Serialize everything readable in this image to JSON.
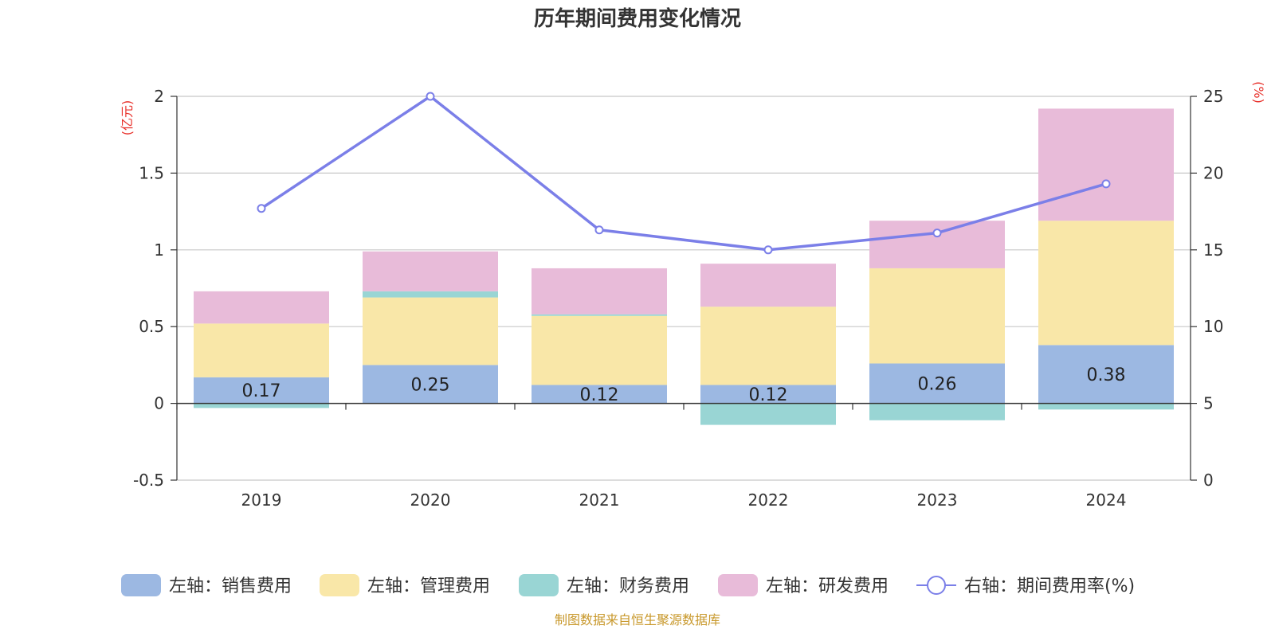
{
  "title": "历年期间费用变化情况",
  "source": "制图数据来自恒生聚源数据库",
  "colors": {
    "sales": "#9cb8e2",
    "admin": "#f9e7a8",
    "finance": "#99d5d4",
    "rd": "#e8bbd9",
    "rate_line": "#7b7fe8",
    "unit_text": "#e8312b",
    "source_text": "#c8982b"
  },
  "chart_data": {
    "type": "bar",
    "stacked": true,
    "title": "历年期间费用变化情况",
    "categories": [
      "2019",
      "2020",
      "2021",
      "2022",
      "2023",
      "2024"
    ],
    "left_axis": {
      "unit": "(亿元)",
      "ylim": [
        -0.5,
        2
      ],
      "ticks": [
        -0.5,
        0,
        0.5,
        1,
        1.5,
        2
      ],
      "tick_labels": [
        "-0.5",
        "0",
        "0.5",
        "1",
        "1.5",
        "2"
      ]
    },
    "right_axis": {
      "unit": "(%)",
      "ylim": [
        0,
        25
      ],
      "ticks": [
        0,
        5,
        10,
        15,
        20,
        25
      ],
      "tick_labels": [
        "0",
        "5",
        "10",
        "15",
        "20",
        "25"
      ]
    },
    "series": [
      {
        "key": "sales",
        "name": "左轴：销售费用",
        "type": "bar",
        "axis": "left",
        "values": [
          0.17,
          0.25,
          0.12,
          0.12,
          0.26,
          0.38
        ],
        "labels": [
          "0.17",
          "0.25",
          "0.12",
          "0.12",
          "0.26",
          "0.38"
        ]
      },
      {
        "key": "admin",
        "name": "左轴：管理费用",
        "type": "bar",
        "axis": "left",
        "values": [
          0.35,
          0.44,
          0.45,
          0.51,
          0.62,
          0.81
        ]
      },
      {
        "key": "finance",
        "name": "左轴：财务费用",
        "type": "bar",
        "axis": "left",
        "values": [
          -0.03,
          0.04,
          0.01,
          -0.14,
          -0.11,
          -0.04
        ]
      },
      {
        "key": "rd",
        "name": "左轴：研发费用",
        "type": "bar",
        "axis": "left",
        "values": [
          0.21,
          0.26,
          0.3,
          0.28,
          0.31,
          0.73
        ]
      },
      {
        "key": "rate",
        "name": "右轴：期间费用率(%)",
        "type": "line",
        "axis": "right",
        "values": [
          17.7,
          25.0,
          16.3,
          15.0,
          16.1,
          19.3
        ]
      }
    ],
    "grid": true,
    "legend_position": "bottom"
  }
}
